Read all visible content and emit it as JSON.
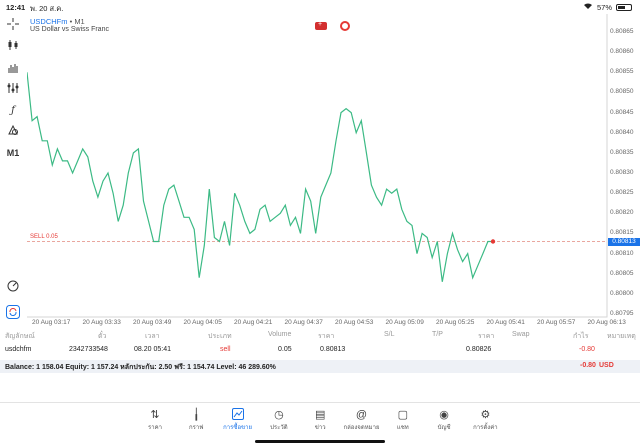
{
  "status": {
    "time": "12:41",
    "date": "พ. 20 ส.ค.",
    "battery": "57%",
    "battery_level": 0.57
  },
  "toolbar_icons": [
    "crosshair-icon",
    "candles-icon",
    "bar-chart-icon",
    "indicators-icon",
    "function-icon",
    "objects-icon"
  ],
  "toolbar": {
    "timeframe": "M1"
  },
  "chart": {
    "symbol": "USDCHFm",
    "timeframe": "M1",
    "description": "US Dollar vs Swiss Franc",
    "sell_label": "SELL 0.05",
    "current_price": "0.80813",
    "colors": {
      "line": "#3cba85",
      "sell_line": "#e9a79f",
      "price_tag": "#1a73e8",
      "marker": "#e53935"
    }
  },
  "chart_data": {
    "type": "line",
    "y_axis_labels": [
      "0.80865",
      "0.80860",
      "0.80855",
      "0.80850",
      "0.80845",
      "0.80840",
      "0.80835",
      "0.80830",
      "0.80825",
      "0.80820",
      "0.80815",
      "0.80810",
      "0.80805",
      "0.80800",
      "0.80795"
    ],
    "x_axis_labels": [
      "20 Aug 03:17",
      "20 Aug 03:33",
      "20 Aug 03:49",
      "20 Aug 04:05",
      "20 Aug 04:21",
      "20 Aug 04:37",
      "20 Aug 04:53",
      "20 Aug 05:09",
      "20 Aug 05:25",
      "20 Aug 05:41",
      "20 Aug 05:57",
      "20 Aug 06:13"
    ],
    "ylim": [
      0.80795,
      0.80867
    ],
    "x_range": [
      0,
      92
    ],
    "sell_price": 0.80813,
    "last_price": 0.80813,
    "values": [
      0.80855,
      0.80843,
      0.80844,
      0.80838,
      0.80838,
      0.80832,
      0.80836,
      0.80833,
      0.80833,
      0.8083,
      0.80833,
      0.80836,
      0.80834,
      0.80828,
      0.80824,
      0.80828,
      0.8083,
      0.80825,
      0.80818,
      0.80822,
      0.8083,
      0.80835,
      0.80836,
      0.80823,
      0.80818,
      0.80813,
      0.80813,
      0.80822,
      0.80826,
      0.80827,
      0.80823,
      0.80819,
      0.80819,
      0.80816,
      0.80804,
      0.80812,
      0.80826,
      0.80814,
      0.80813,
      0.80818,
      0.80812,
      0.80825,
      0.80822,
      0.80818,
      0.80815,
      0.80816,
      0.80821,
      0.80822,
      0.80818,
      0.80819,
      0.8082,
      0.80822,
      0.80817,
      0.80819,
      0.80815,
      0.80826,
      0.80823,
      0.80815,
      0.80824,
      0.80827,
      0.8083,
      0.80838,
      0.80845,
      0.80846,
      0.80845,
      0.8084,
      0.80843,
      0.80835,
      0.80827,
      0.80824,
      0.80822,
      0.80826,
      0.80825,
      0.80826,
      0.80821,
      0.80818,
      0.80817,
      0.8081,
      0.80815,
      0.80814,
      0.80809,
      0.80813,
      0.80803,
      0.8081,
      0.80815,
      0.80811,
      0.80808,
      0.8081,
      0.80804,
      0.80807,
      0.8081,
      0.80813,
      0.80813
    ]
  },
  "trades": {
    "headers": [
      "สัญลักษณ์",
      "ตั๋ว",
      "เวลา",
      "ประเภท",
      "Volume",
      "ราคา",
      "S/L",
      "T/P",
      "ราคา",
      "Swap",
      "กำไร",
      "หมายเหตุ"
    ],
    "row": {
      "symbol": "usdchfm",
      "ticket": "2342733548",
      "time": "08.20 05:41",
      "type": "sell",
      "volume": "0.05",
      "price": "0.80813",
      "sl": "",
      "tp": "",
      "current": "0.80826",
      "swap": "",
      "profit": "-0.80",
      "comment": ""
    },
    "balance": "Balance: 1 158.04 Equity: 1 157.24 หลักประกัน: 2.50 ฟรี: 1 154.74 Level: 46 289.60%",
    "balance_profit": "-0.80",
    "balance_currency": "USD"
  },
  "nav": [
    {
      "label": "ราคา",
      "icon": "arrows-icon"
    },
    {
      "label": "กราฟ",
      "icon": "chart-icon"
    },
    {
      "label": "การซื้อขาย",
      "icon": "trade-icon",
      "active": true
    },
    {
      "label": "ประวัติ",
      "icon": "history-icon"
    },
    {
      "label": "ข่าว",
      "icon": "news-icon"
    },
    {
      "label": "กล่องจดหมาย",
      "icon": "mail-icon"
    },
    {
      "label": "แชท",
      "icon": "chat-icon"
    },
    {
      "label": "บัญชี",
      "icon": "account-icon"
    },
    {
      "label": "การตั้งค่า",
      "icon": "settings-icon"
    }
  ]
}
